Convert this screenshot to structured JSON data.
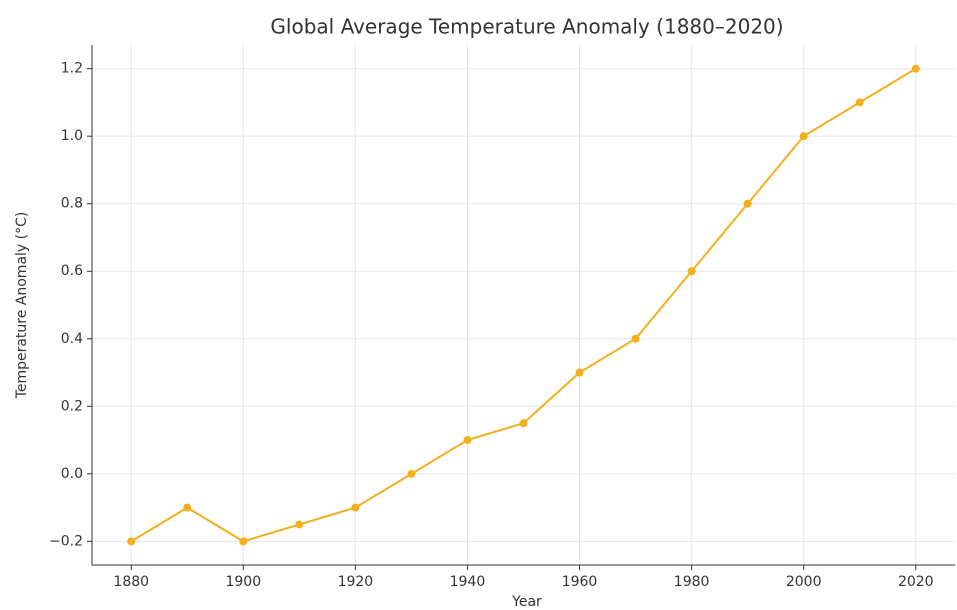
{
  "chart_data": {
    "type": "line",
    "title": "Global Average Temperature Anomaly (1880–2020)",
    "x_label": "Year",
    "y_label": "Temperature Anomaly (°C)",
    "x": [
      1880,
      1890,
      1900,
      1910,
      1920,
      1930,
      1940,
      1950,
      1960,
      1970,
      1980,
      1990,
      2000,
      2010,
      2020
    ],
    "series": [
      {
        "name": "Temperature Anomaly",
        "color": "#f2b01e",
        "values": [
          -0.2,
          -0.1,
          -0.2,
          -0.15,
          -0.1,
          0.0,
          0.1,
          0.15,
          0.3,
          0.4,
          0.6,
          0.8,
          1.0,
          1.1,
          1.2
        ]
      }
    ],
    "xlim": [
      1873,
      2027
    ],
    "ylim": [
      -0.27,
      1.27
    ],
    "xticks": [
      1880,
      1900,
      1920,
      1940,
      1960,
      1980,
      2000,
      2020
    ],
    "yticks": [
      {
        "value": -0.2,
        "label": "−0.2"
      },
      {
        "value": 0,
        "label": "0.0"
      },
      0.2,
      0.4,
      0.6,
      0.8,
      {
        "value": 1,
        "label": "1.0"
      },
      1.2
    ],
    "grid": true
  }
}
